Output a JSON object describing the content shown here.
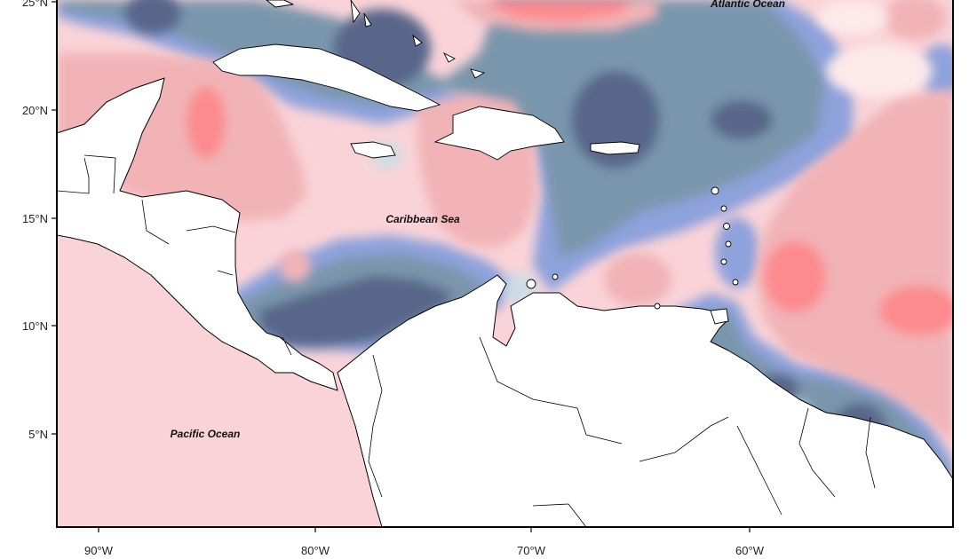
{
  "map": {
    "labels": {
      "atlantic": "Atlantic Ocean",
      "caribbean": "Caribbean Sea",
      "pacific": "Pacific Ocean"
    },
    "lat_ticks": [
      "25°N",
      "20°N",
      "15°N",
      "10°N",
      "5°N"
    ],
    "lon_ticks": [
      "90°W",
      "80°W",
      "70°W",
      "60°W"
    ],
    "colors": {
      "strong_negative": "#59668a",
      "negative": "#7a96ac",
      "weak_negative": "#8ea2dc",
      "near_zero_neg": "#c8dfe6",
      "near_zero_pos": "#fde9ea",
      "weak_positive": "#f9d3d8",
      "positive": "#f1b3b6",
      "strong_positive": "#fc8a8e",
      "land": "#ffffff",
      "outline": "#000000"
    }
  }
}
